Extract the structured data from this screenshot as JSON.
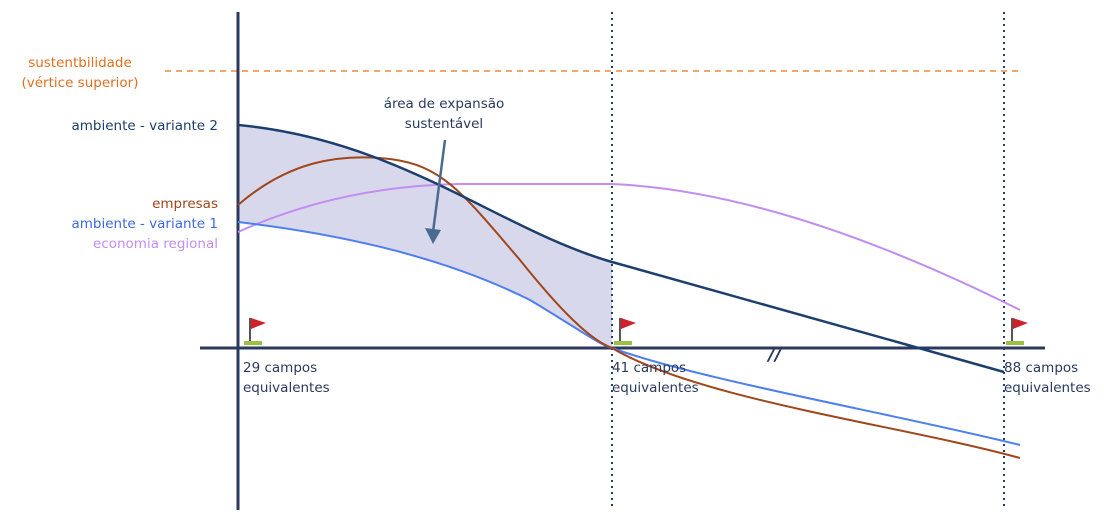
{
  "top_label": {
    "line1": "sustentbilidade",
    "line2": "(vértice superior)"
  },
  "area_label": {
    "line1": "área de expansão",
    "line2": "sustentável"
  },
  "curve_labels": [
    "ambiente - variante 2",
    "empresas",
    "ambiente - variante 1",
    "economia regional"
  ],
  "break_mark": "//",
  "markers": [
    {
      "line1": "29 campos",
      "line2": "equivalentes"
    },
    {
      "line1": "41 campos",
      "line2": "equivalentes"
    },
    {
      "line1": "88 campos",
      "line2": "equivalentes"
    }
  ]
}
